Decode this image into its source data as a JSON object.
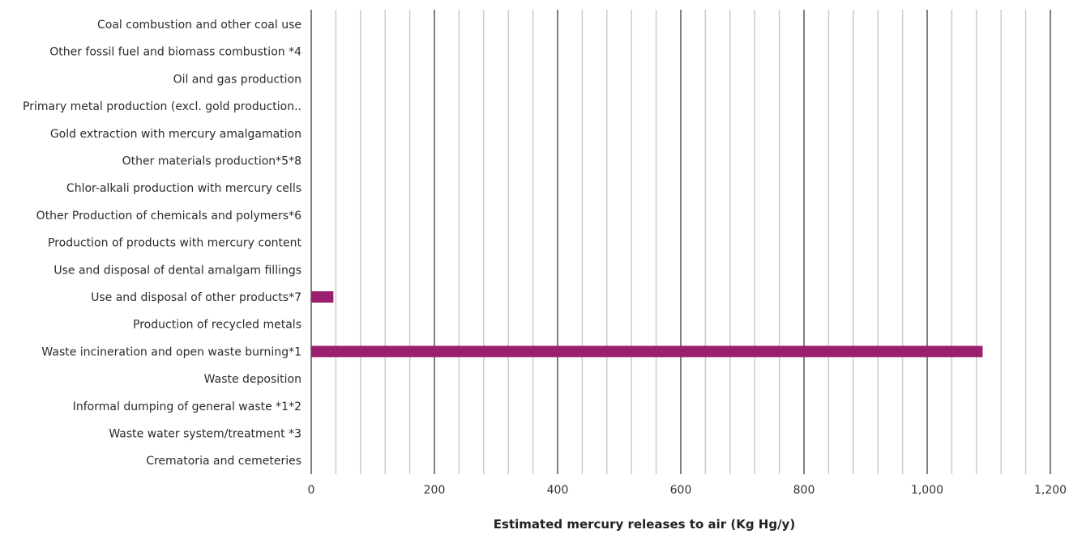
{
  "chart_data": {
    "type": "bar",
    "orientation": "horizontal",
    "title": "",
    "xlabel": "Estimated mercury releases to air (Kg Hg/y)",
    "ylabel": "",
    "xlim": [
      0,
      1200
    ],
    "major_ticks": [
      0,
      200,
      400,
      600,
      800,
      1000,
      1200
    ],
    "tick_labels": [
      "0",
      "200",
      "400",
      "600",
      "800",
      "1,000",
      "1,200"
    ],
    "minor_tick_step": 40,
    "grid": true,
    "legend": "none",
    "categories": [
      "Coal combustion and other coal use",
      "Other fossil fuel and biomass combustion *4",
      "Oil and gas production",
      "Primary metal production (excl. gold production..",
      "Gold extraction with mercury amalgamation",
      "Other materials production*5*8",
      "Chlor-alkali production with mercury cells",
      "Other Production of chemicals and polymers*6",
      "Production of products with mercury content",
      "Use and disposal of dental amalgam fillings",
      "Use and disposal of other products*7",
      "Production of recycled metals",
      "Waste incineration and open waste burning*1",
      "Waste deposition",
      "Informal dumping of general waste *1*2",
      "Waste water system/treatment *3",
      "Crematoria and cemeteries"
    ],
    "values": [
      0,
      0,
      0,
      0,
      0,
      0,
      0,
      0,
      0,
      0,
      36,
      0,
      1090,
      0,
      0,
      0,
      0
    ],
    "colors": {
      "bar": "#9b1f6e",
      "major_grid": "#4a4a4a",
      "minor_grid": "#d2c4c4"
    }
  }
}
